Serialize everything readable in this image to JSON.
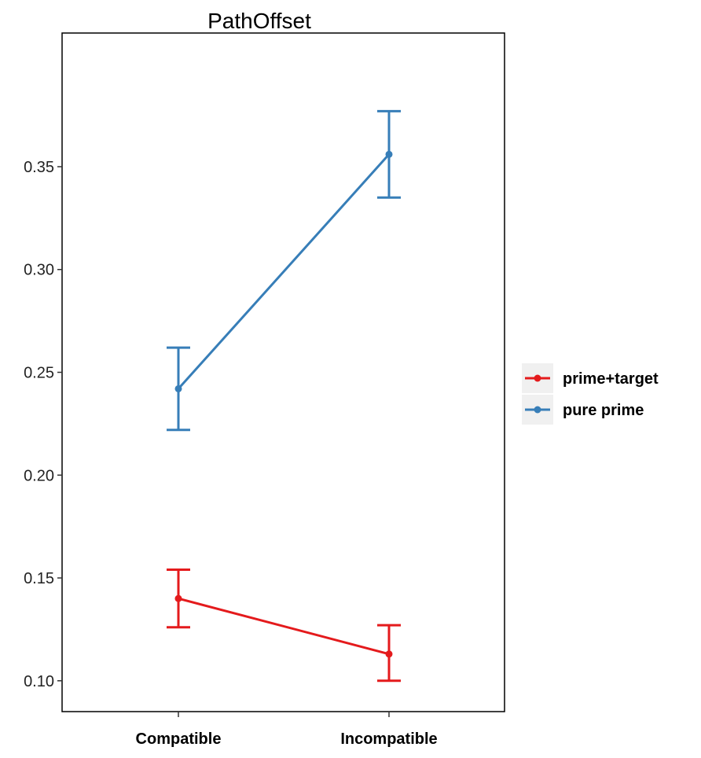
{
  "chart_data": {
    "type": "line",
    "title": "PathOffset",
    "xlabel": "",
    "ylabel": "",
    "categories": [
      "Compatible",
      "Incompatible"
    ],
    "ylim": [
      0.085,
      0.415
    ],
    "yticks": [
      0.1,
      0.15,
      0.2,
      0.25,
      0.3,
      0.35
    ],
    "ytick_labels": [
      "0.10",
      "0.15",
      "0.20",
      "0.25",
      "0.30",
      "0.35"
    ],
    "grid": false,
    "legend_position": "right",
    "series": [
      {
        "name": "prime+target",
        "color": "#e41a1c",
        "values": [
          0.14,
          0.113
        ],
        "ci_low": [
          0.126,
          0.1
        ],
        "ci_high": [
          0.154,
          0.127
        ]
      },
      {
        "name": "pure prime",
        "color": "#377eb8",
        "values": [
          0.242,
          0.356
        ],
        "ci_low": [
          0.222,
          0.335
        ],
        "ci_high": [
          0.262,
          0.377
        ]
      }
    ]
  }
}
